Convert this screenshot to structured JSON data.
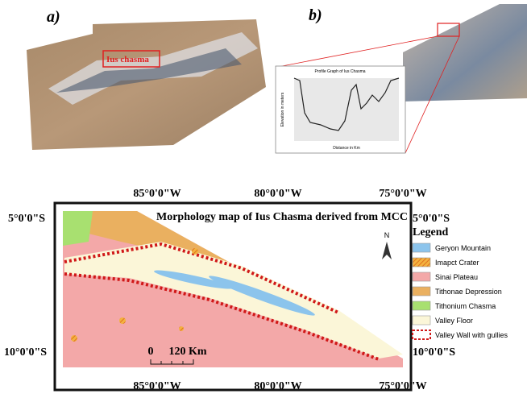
{
  "panel_a": {
    "label": "a)",
    "annotation": "Ius chasma"
  },
  "panel_b": {
    "label": "b)",
    "profile": {
      "title": "Profile Graph of Ius Chasma",
      "x_label": "Distance in Km",
      "y_label": "Elevation in meters"
    }
  },
  "map": {
    "title": "Morphology map of Ius Chasma derived from MCC",
    "top_longitudes": [
      "85°0'0\"W",
      "80°0'0\"W",
      "75°0'0\"W"
    ],
    "bottom_longitudes": [
      "85°0'0\"W",
      "80°0'0\"W",
      "75°0'0\"W"
    ],
    "left_latitudes": [
      "5°0'0\"S",
      "10°0'0\"S"
    ],
    "right_latitudes": [
      "5°0'0\"S",
      "10°0'0\"S"
    ],
    "north": "N",
    "legend": {
      "title": "Legend",
      "items": [
        "Geryon Mountain",
        "Imapct Crater",
        "Sinai Plateau",
        "Tithonae Depression",
        "Tithonium Chasma",
        "Valley Floor",
        "Valley Wall with gullies"
      ]
    },
    "scale": {
      "start": "0",
      "end": "120 Km"
    }
  }
}
